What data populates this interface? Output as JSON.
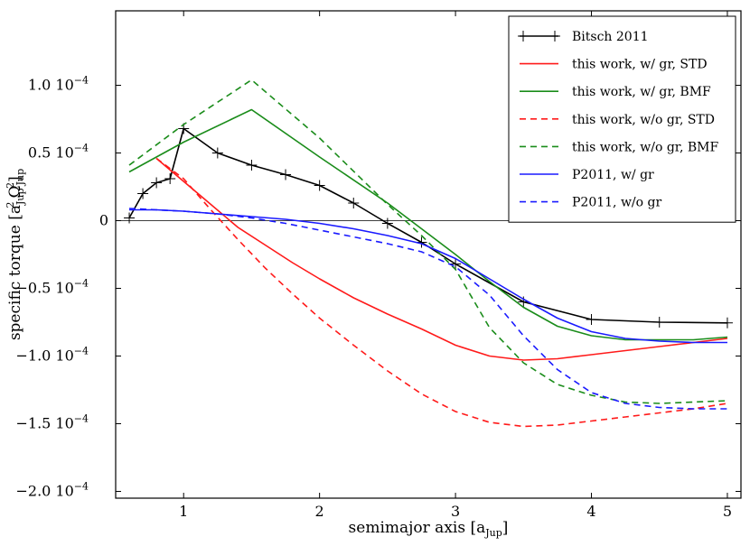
{
  "chart_data": {
    "type": "line",
    "title": "",
    "xlabel": "semimajor axis [a",
    "xlabel_sub": "Jup",
    "xlabel_close": "]",
    "ylabel_parts": [
      "specific torque [a",
      "Jup",
      "2",
      "Ω",
      "Jup",
      "2",
      "]"
    ],
    "xlim": [
      0.5,
      5.1
    ],
    "ylim": [
      -0.000205,
      0.000155
    ],
    "xticks": [
      {
        "value": 1,
        "label": "1"
      },
      {
        "value": 2,
        "label": "2"
      },
      {
        "value": 3,
        "label": "3"
      },
      {
        "value": 4,
        "label": "4"
      },
      {
        "value": 5,
        "label": "5"
      }
    ],
    "yticks": [
      {
        "value": 0.0001,
        "label": "1.0 10",
        "exp": "−4"
      },
      {
        "value": 5e-05,
        "label": "0.5 10",
        "exp": "−4"
      },
      {
        "value": 0,
        "label": "0",
        "exp": ""
      },
      {
        "value": -5e-05,
        "label": "−0.5 10",
        "exp": "−4"
      },
      {
        "value": -0.0001,
        "label": "−1.0 10",
        "exp": "−4"
      },
      {
        "value": -0.00015,
        "label": "−1.5 10",
        "exp": "−4"
      },
      {
        "value": -0.0002,
        "label": "−2.0 10",
        "exp": "−4"
      }
    ],
    "zero_line": true,
    "legend_position": "top-right",
    "series": [
      {
        "name": "Bitsch 2011",
        "color": "#000000",
        "dash": "solid",
        "marker": "plus",
        "x": [
          0.6,
          0.7,
          0.8,
          0.9,
          1.0,
          1.25,
          1.5,
          1.75,
          2.0,
          2.25,
          2.5,
          2.75,
          3.0,
          3.5,
          4.0,
          4.5,
          5.0
        ],
        "y": [
          2e-06,
          2e-05,
          2.8e-05,
          3.1e-05,
          6.8e-05,
          5e-05,
          4.1e-05,
          3.4e-05,
          2.6e-05,
          1.3e-05,
          -2e-06,
          -1.6e-05,
          -3.2e-05,
          -6e-05,
          -7.3e-05,
          -7.5e-05,
          -7.55e-05
        ]
      },
      {
        "name": "this work, w/ gr, STD",
        "color": "#ff1a1a",
        "dash": "solid",
        "marker": "none",
        "x": [
          0.8,
          1.0,
          1.2,
          1.4,
          1.6,
          1.8,
          2.0,
          2.25,
          2.5,
          2.75,
          3.0,
          3.25,
          3.5,
          3.75,
          4.0,
          4.25,
          4.5,
          4.75,
          5.0
        ],
        "y": [
          4.6e-05,
          2.9e-05,
          1.2e-05,
          -5e-06,
          -1.8e-05,
          -3.1e-05,
          -4.3e-05,
          -5.7e-05,
          -6.9e-05,
          -8e-05,
          -9.2e-05,
          -0.0001,
          -0.000103,
          -0.000102,
          -9.9e-05,
          -9.6e-05,
          -9.3e-05,
          -9e-05,
          -8.7e-05
        ]
      },
      {
        "name": "this work, w/ gr, BMF",
        "color": "#1a8c1a",
        "dash": "solid",
        "marker": "none",
        "x": [
          0.6,
          1.0,
          1.5,
          2.0,
          2.5,
          2.75,
          3.0,
          3.25,
          3.5,
          3.75,
          4.0,
          4.25,
          4.5,
          4.75,
          5.0
        ],
        "y": [
          3.6e-05,
          5.8e-05,
          8.2e-05,
          4.7e-05,
          1.3e-05,
          -6e-06,
          -2.5e-05,
          -4.5e-05,
          -6.4e-05,
          -7.8e-05,
          -8.5e-05,
          -8.8e-05,
          -8.8e-05,
          -8.8e-05,
          -8.6e-05
        ]
      },
      {
        "name": "this work, w/o gr, STD",
        "color": "#ff1a1a",
        "dash": "dashed",
        "marker": "none",
        "x": [
          0.8,
          1.0,
          1.2,
          1.4,
          1.6,
          1.8,
          2.0,
          2.25,
          2.5,
          2.75,
          3.0,
          3.25,
          3.5,
          3.75,
          4.0,
          4.25,
          4.5,
          4.75,
          5.0
        ],
        "y": [
          4.6e-05,
          3.1e-05,
          8e-06,
          -1.4e-05,
          -3.5e-05,
          -5.4e-05,
          -7.2e-05,
          -9.2e-05,
          -0.000111,
          -0.000128,
          -0.000141,
          -0.000149,
          -0.000152,
          -0.000151,
          -0.000148,
          -0.000145,
          -0.000142,
          -0.000139,
          -0.000135
        ]
      },
      {
        "name": "this work, w/o gr, BMF",
        "color": "#1a8c1a",
        "dash": "dashed",
        "marker": "none",
        "x": [
          0.6,
          1.0,
          1.5,
          2.0,
          2.5,
          2.75,
          3.0,
          3.25,
          3.5,
          3.75,
          4.0,
          4.25,
          4.5,
          4.75,
          5.0
        ],
        "y": [
          4.1e-05,
          7.1e-05,
          0.000104,
          6.1e-05,
          1.2e-05,
          -1.1e-05,
          -3.6e-05,
          -7.9e-05,
          -0.000105,
          -0.000121,
          -0.000129,
          -0.000134,
          -0.000135,
          -0.000134,
          -0.000133
        ]
      },
      {
        "name": "P2011, w/ gr",
        "color": "#1a1aff",
        "dash": "solid",
        "marker": "none",
        "x": [
          0.6,
          0.8,
          1.0,
          1.25,
          1.5,
          1.75,
          2.0,
          2.25,
          2.5,
          2.75,
          3.0,
          3.25,
          3.5,
          3.75,
          4.0,
          4.25,
          4.5,
          4.75,
          5.0
        ],
        "y": [
          8e-06,
          8e-06,
          7e-06,
          5e-06,
          3e-06,
          1e-06,
          -2e-06,
          -6e-06,
          -1.1e-05,
          -1.7e-05,
          -2.8e-05,
          -4.3e-05,
          -5.8e-05,
          -7.2e-05,
          -8.2e-05,
          -8.7e-05,
          -8.9e-05,
          -9e-05,
          -9e-05
        ]
      },
      {
        "name": "P2011, w/o gr",
        "color": "#1a1aff",
        "dash": "dashed",
        "marker": "none",
        "x": [
          0.6,
          0.8,
          1.0,
          1.25,
          1.5,
          1.75,
          2.0,
          2.25,
          2.5,
          2.75,
          3.0,
          3.25,
          3.5,
          3.75,
          4.0,
          4.25,
          4.5,
          4.75,
          5.0
        ],
        "y": [
          9e-06,
          8e-06,
          7e-06,
          5e-06,
          2e-06,
          -2e-06,
          -7e-06,
          -1.2e-05,
          -1.7e-05,
          -2.3e-05,
          -3.4e-05,
          -5.5e-05,
          -8.5e-05,
          -0.00011,
          -0.000127,
          -0.000135,
          -0.000138,
          -0.000139,
          -0.000139
        ]
      }
    ]
  }
}
